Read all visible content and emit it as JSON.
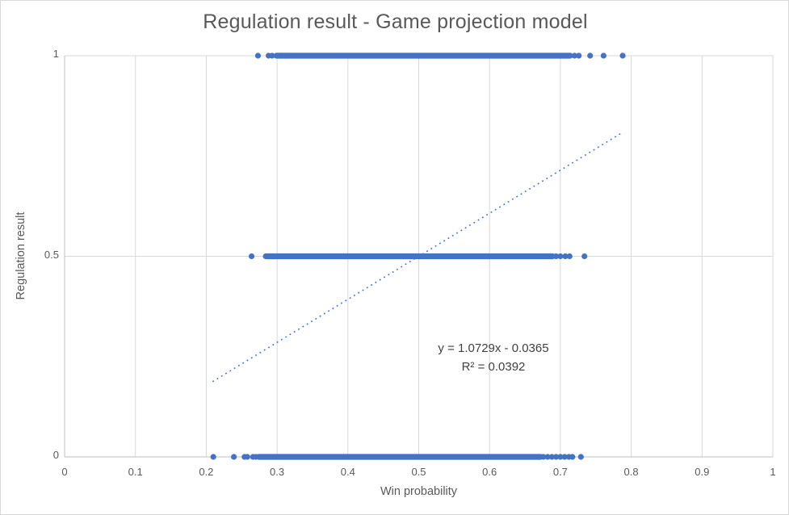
{
  "colors": {
    "point": "#4472C4",
    "trendline": "#4472C4",
    "gridline": "#D9D9D9",
    "axis_line": "#BFBFBF",
    "title_text": "#595959",
    "tick_text": "#595959",
    "equation_text": "#404040",
    "background": "#FFFFFF"
  },
  "chart_data": {
    "type": "scatter",
    "title": "Regulation result - Game projection model",
    "xlabel": "Win probability",
    "ylabel": "Regulation result",
    "xlim": [
      0,
      1
    ],
    "ylim": [
      0,
      1
    ],
    "x_ticks": [
      "0",
      "0.1",
      "0.2",
      "0.3",
      "0.4",
      "0.5",
      "0.6",
      "0.7",
      "0.8",
      "0.9",
      "1"
    ],
    "y_ticks": [
      "0",
      "0.5",
      "1"
    ],
    "grid": {
      "vertical_step": 0.1,
      "horizontal_lines": [
        0.5,
        1
      ]
    },
    "legend": "none",
    "point_color": "#4472C4",
    "series": [
      {
        "name": "regulation-result-1",
        "y": 1,
        "solid": [
          [
            0.3,
            0.714
          ]
        ],
        "dots": [
          0.273,
          0.288,
          0.293,
          0.299,
          0.305,
          0.311,
          0.72,
          0.726,
          0.742,
          0.761,
          0.788
        ]
      },
      {
        "name": "regulation-result-0.5",
        "y": 0.5,
        "solid": [
          [
            0.284,
            0.689
          ]
        ],
        "dots": [
          0.264,
          0.694,
          0.7,
          0.707,
          0.713,
          0.734
        ]
      },
      {
        "name": "regulation-result-0",
        "y": 0,
        "solid": [
          [
            0.274,
            0.672
          ]
        ],
        "dots": [
          0.21,
          0.239,
          0.254,
          0.258,
          0.266,
          0.27,
          0.676,
          0.682,
          0.688,
          0.694,
          0.7,
          0.706,
          0.712,
          0.717,
          0.729
        ]
      }
    ],
    "trendline": {
      "style": "dotted",
      "equation": "y = 1.0729x - 0.0365",
      "r_squared": "R² = 0.0392",
      "slope": 1.0729,
      "intercept": -0.0365,
      "x_start": 0.209,
      "x_end": 0.788
    }
  }
}
